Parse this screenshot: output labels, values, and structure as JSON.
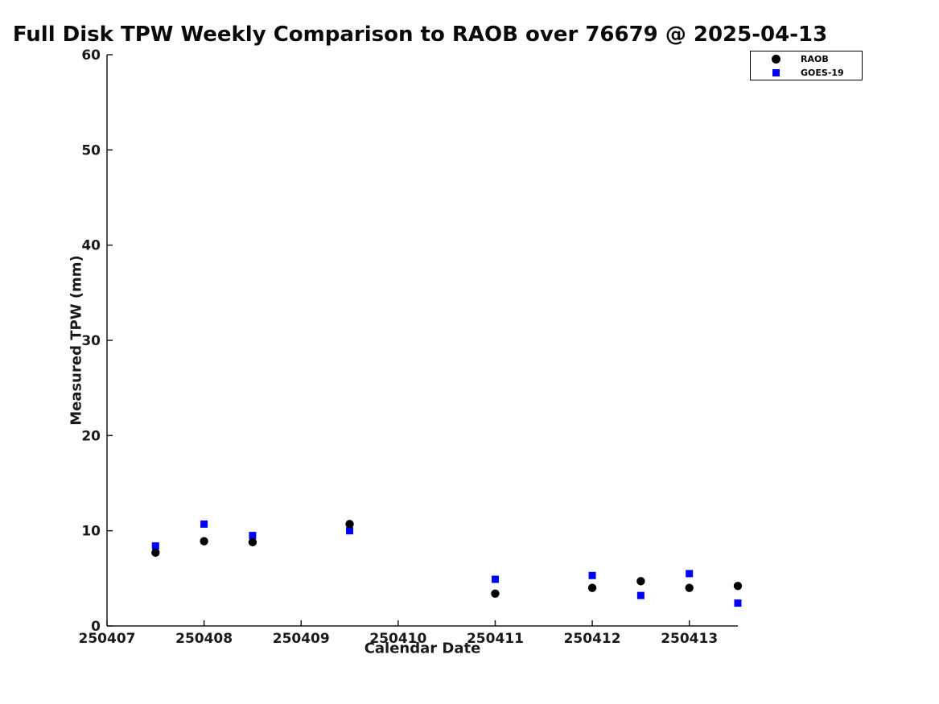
{
  "chart_data": {
    "type": "scatter",
    "title": "Full Disk TPW Weekly Comparison to RAOB over 76679 @ 2025-04-13",
    "xlabel": "Calendar Date",
    "ylabel": "Measured TPW (mm)",
    "xlim": [
      250407,
      250413.5
    ],
    "ylim": [
      0,
      60
    ],
    "grid": false,
    "legend_position": "top-right",
    "axis_color": "#1a1a1a",
    "text_color": "#1a1a1a",
    "x_ticks": [
      {
        "value": 250407,
        "label": "250407"
      },
      {
        "value": 250408,
        "label": "250408"
      },
      {
        "value": 250409,
        "label": "250409"
      },
      {
        "value": 250410,
        "label": "250410"
      },
      {
        "value": 250411,
        "label": "250411"
      },
      {
        "value": 250412,
        "label": "250412"
      },
      {
        "value": 250413,
        "label": "250413"
      }
    ],
    "y_ticks": [
      {
        "value": 0,
        "label": "0"
      },
      {
        "value": 10,
        "label": "10"
      },
      {
        "value": 20,
        "label": "20"
      },
      {
        "value": 30,
        "label": "30"
      },
      {
        "value": 40,
        "label": "40"
      },
      {
        "value": 50,
        "label": "50"
      },
      {
        "value": 60,
        "label": "60"
      }
    ],
    "x": [
      250407.5,
      250408,
      250408.5,
      250409.5,
      250411,
      250412,
      250412.5,
      250413,
      250413.5
    ],
    "series": [
      {
        "name": "RAOB",
        "marker": "circle",
        "color": "#000000",
        "values": [
          7.7,
          8.9,
          8.8,
          10.7,
          3.4,
          4.0,
          4.7,
          4.0,
          4.2
        ]
      },
      {
        "name": "GOES-19",
        "marker": "square",
        "color": "#0000ff",
        "values": [
          8.4,
          10.7,
          9.5,
          10.0,
          4.9,
          5.3,
          3.2,
          5.5,
          2.4
        ]
      }
    ]
  }
}
